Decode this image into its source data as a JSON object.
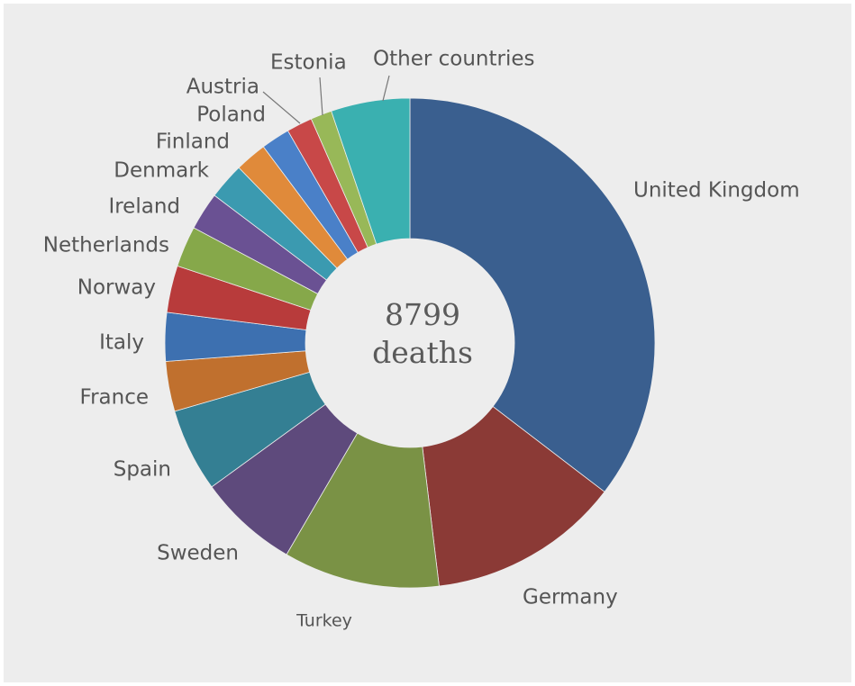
{
  "chart_data": {
    "type": "donut",
    "categories": [
      "United Kingdom",
      "Germany",
      "Turkey",
      "Sweden",
      "Spain",
      "France",
      "Italy",
      "Norway",
      "Netherlands",
      "Ireland",
      "Denmark",
      "Finland",
      "Poland",
      "Austria",
      "Estonia",
      "Other countries"
    ],
    "values": [
      35.4,
      12.7,
      10.3,
      6.6,
      5.5,
      3.3,
      3.2,
      3.1,
      2.7,
      2.5,
      2.4,
      2.1,
      1.9,
      1.7,
      1.4,
      5.2
    ],
    "colors": [
      "#3a5f8f",
      "#8b3a36",
      "#7a9245",
      "#5e4a7c",
      "#347f93",
      "#c0702e",
      "#3d70b0",
      "#b83b3b",
      "#86a84a",
      "#6a5193",
      "#3b9ab0",
      "#e08a3a",
      "#4a80c8",
      "#c84848",
      "#98b858",
      "#3ab0b0"
    ],
    "total": 8799,
    "total_label": "deaths"
  }
}
